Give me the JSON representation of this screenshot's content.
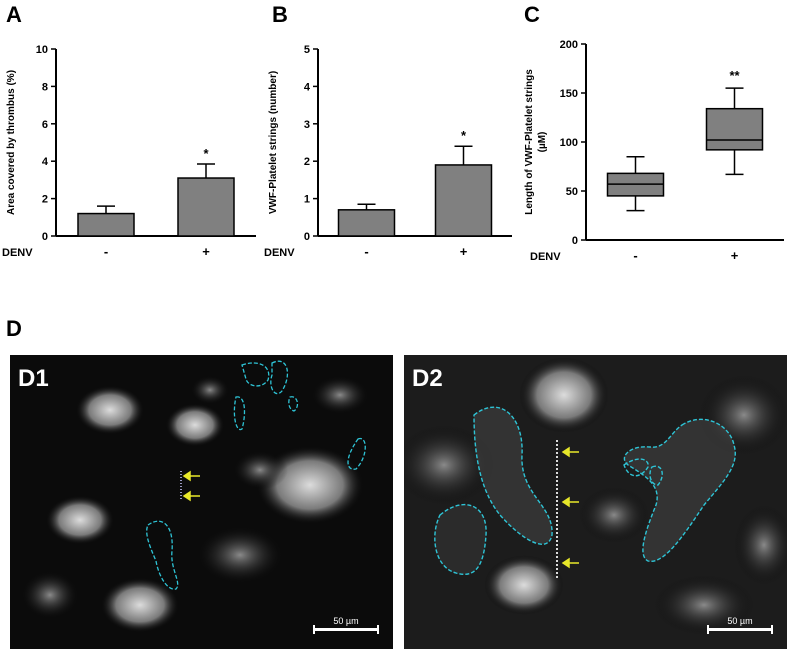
{
  "panels": {
    "A": "A",
    "B": "B",
    "C": "C",
    "D": "D"
  },
  "chart_data": [
    {
      "type": "bar",
      "panel": "A",
      "categories": [
        "-",
        "+"
      ],
      "values": [
        1.2,
        3.1
      ],
      "errors": [
        0.4,
        0.75
      ],
      "significance": [
        "",
        "*"
      ],
      "ylabel": "Area covered by thrombus (%)",
      "xlabel": "DENV",
      "ylim": [
        0,
        10
      ],
      "yticks": [
        0,
        2,
        4,
        6,
        8,
        10
      ],
      "bar_color": "#808080"
    },
    {
      "type": "bar",
      "panel": "B",
      "categories": [
        "-",
        "+"
      ],
      "values": [
        0.7,
        1.9
      ],
      "errors": [
        0.15,
        0.5
      ],
      "significance": [
        "",
        "*"
      ],
      "ylabel": "VWF-Platelet strings (number)",
      "xlabel": "DENV",
      "ylim": [
        0,
        5
      ],
      "yticks": [
        0,
        1,
        2,
        3,
        4,
        5
      ],
      "bar_color": "#808080"
    },
    {
      "type": "box",
      "panel": "C",
      "categories": [
        "-",
        "+"
      ],
      "boxes": [
        {
          "min": 30,
          "q1": 45,
          "median": 57,
          "q3": 68,
          "max": 85
        },
        {
          "min": 67,
          "q1": 92,
          "median": 102,
          "q3": 134,
          "max": 155
        }
      ],
      "significance": [
        "",
        "**"
      ],
      "ylabel": "Length of  VWF-Platelet strings (µM)",
      "xlabel": "DENV",
      "ylim": [
        0,
        200
      ],
      "yticks": [
        0,
        50,
        100,
        150,
        200
      ],
      "box_color": "#808080"
    }
  ],
  "images": [
    {
      "label": "D1",
      "scale_label": "50 µm"
    },
    {
      "label": "D2",
      "scale_label": "50 µm"
    }
  ]
}
